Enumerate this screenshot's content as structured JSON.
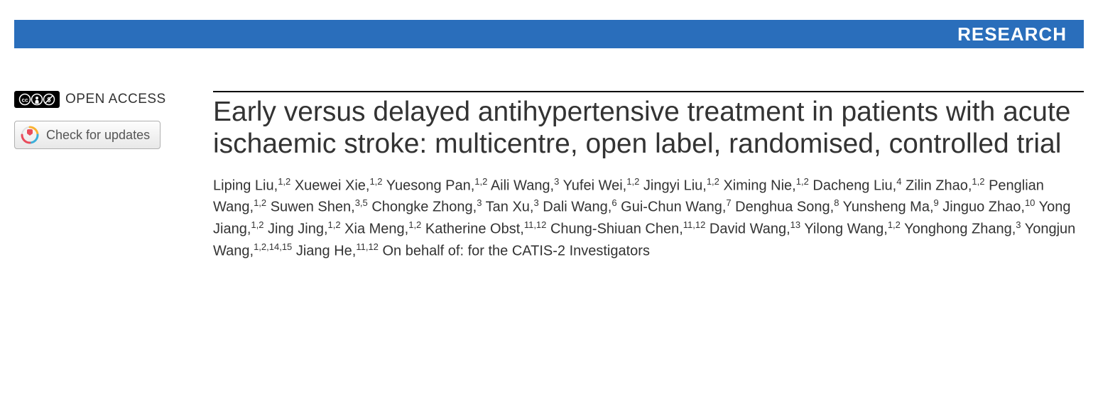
{
  "banner": {
    "label": "RESEARCH",
    "background_color": "#2a6ebb",
    "text_color": "#ffffff"
  },
  "sidebar": {
    "open_access_label": "OPEN ACCESS",
    "updates_label": "Check for updates"
  },
  "article": {
    "title": "Early versus delayed antihypertensive treatment in patients with acute ischaemic stroke: multicentre, open label, randomised, controlled trial",
    "authors": [
      {
        "name": "Liping Liu",
        "aff": "1,2"
      },
      {
        "name": "Xuewei Xie",
        "aff": "1,2"
      },
      {
        "name": "Yuesong Pan",
        "aff": "1,2"
      },
      {
        "name": "Aili Wang",
        "aff": "3"
      },
      {
        "name": "Yufei Wei",
        "aff": "1,2"
      },
      {
        "name": "Jingyi Liu",
        "aff": "1,2"
      },
      {
        "name": "Ximing Nie",
        "aff": "1,2"
      },
      {
        "name": "Dacheng Liu",
        "aff": "4"
      },
      {
        "name": "Zilin Zhao",
        "aff": "1,2"
      },
      {
        "name": "Penglian Wang",
        "aff": "1,2"
      },
      {
        "name": "Suwen Shen",
        "aff": "3,5"
      },
      {
        "name": "Chongke Zhong",
        "aff": "3"
      },
      {
        "name": "Tan Xu",
        "aff": "3"
      },
      {
        "name": "Dali Wang",
        "aff": "6"
      },
      {
        "name": "Gui-Chun Wang",
        "aff": "7"
      },
      {
        "name": "Denghua Song",
        "aff": "8"
      },
      {
        "name": "Yunsheng Ma",
        "aff": "9"
      },
      {
        "name": "Jinguo Zhao",
        "aff": "10"
      },
      {
        "name": "Yong Jiang",
        "aff": "1,2"
      },
      {
        "name": "Jing Jing",
        "aff": "1,2"
      },
      {
        "name": "Xia Meng",
        "aff": "1,2"
      },
      {
        "name": "Katherine Obst",
        "aff": "11,12"
      },
      {
        "name": "Chung-Shiuan Chen",
        "aff": "11,12"
      },
      {
        "name": "David Wang",
        "aff": "13"
      },
      {
        "name": "Yilong Wang",
        "aff": "1,2"
      },
      {
        "name": "Yonghong Zhang",
        "aff": "3"
      },
      {
        "name": "Yongjun Wang",
        "aff": "1,2,14,15"
      },
      {
        "name": "Jiang He",
        "aff": "11,12"
      }
    ],
    "behalf_text": "On behalf of: for the CATIS-2 Investigators"
  },
  "style": {
    "body_bg": "#ffffff",
    "title_color": "#333333",
    "author_color": "#333333",
    "title_fontsize": 39,
    "author_fontsize": 20,
    "rule_color": "#000000"
  }
}
